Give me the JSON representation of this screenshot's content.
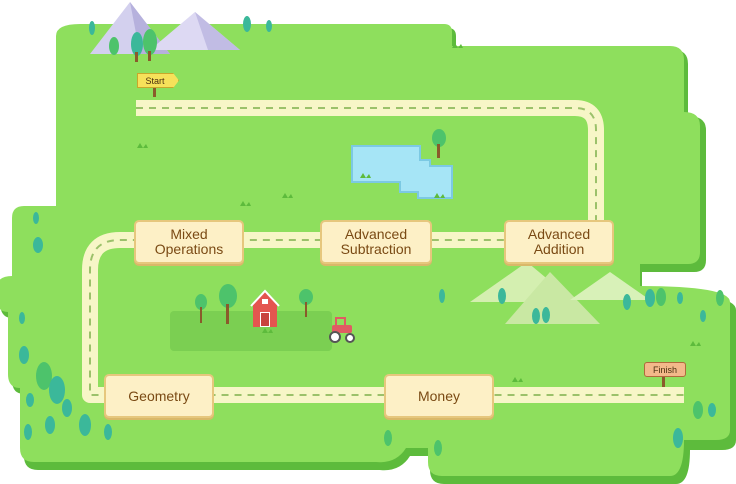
{
  "map": {
    "start_label": "Start",
    "finish_label": "Finish",
    "lessons": [
      {
        "line1": "Mixed",
        "line2": "Operations"
      },
      {
        "line1": "Advanced",
        "line2": "Subtraction"
      },
      {
        "line1": "Advanced",
        "line2": "Addition"
      },
      {
        "line1": "Geometry",
        "line2": ""
      },
      {
        "line1": "Money",
        "line2": ""
      }
    ]
  },
  "colors": {
    "grass": "#8edf5d",
    "grass_shadow": "#5dbb3c",
    "path": "#f7f6c7",
    "path_dash": "#9bc16a",
    "water": "#a6e5f6",
    "node_fill": "#fdf0c6",
    "node_border": "#e6c77d"
  }
}
